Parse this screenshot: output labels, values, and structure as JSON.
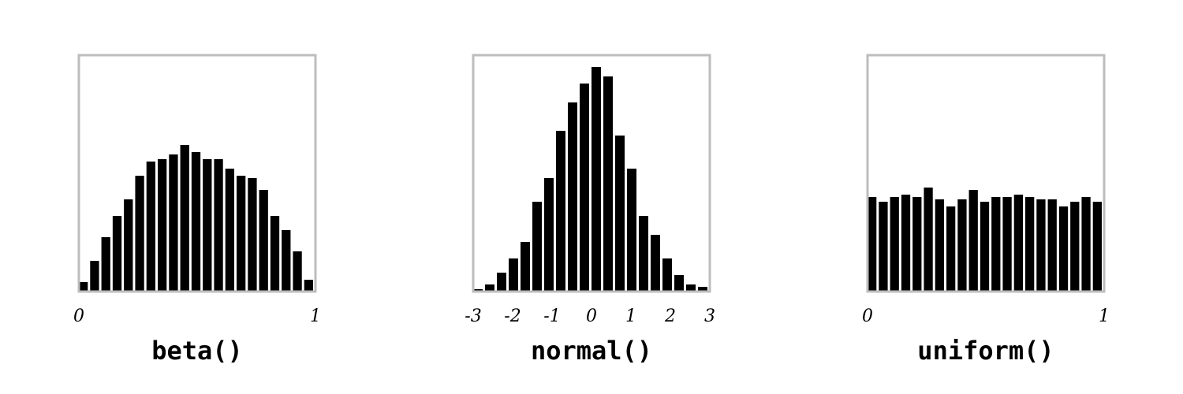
{
  "chart_data": [
    {
      "type": "bar",
      "title": "beta()",
      "xlim": [
        0,
        1
      ],
      "ylim": [
        0,
        1
      ],
      "xticks": [
        "0",
        "1"
      ],
      "grid": false,
      "values": [
        0.04,
        0.13,
        0.23,
        0.32,
        0.39,
        0.49,
        0.55,
        0.56,
        0.58,
        0.62,
        0.59,
        0.56,
        0.56,
        0.52,
        0.49,
        0.48,
        0.43,
        0.32,
        0.26,
        0.17,
        0.05
      ]
    },
    {
      "type": "bar",
      "title": "normal()",
      "xlim": [
        -3,
        3
      ],
      "ylim": [
        0,
        1
      ],
      "xticks": [
        "-3",
        "-2",
        "-1",
        "0",
        "1",
        "2",
        "3"
      ],
      "grid": false,
      "values": [
        0.01,
        0.03,
        0.08,
        0.14,
        0.21,
        0.38,
        0.48,
        0.68,
        0.8,
        0.88,
        0.95,
        0.91,
        0.66,
        0.52,
        0.32,
        0.24,
        0.14,
        0.07,
        0.03,
        0.02
      ]
    },
    {
      "type": "bar",
      "title": "uniform()",
      "xlim": [
        0,
        1
      ],
      "ylim": [
        0,
        1
      ],
      "xticks": [
        "0",
        "1"
      ],
      "grid": false,
      "values": [
        0.4,
        0.38,
        0.4,
        0.41,
        0.4,
        0.44,
        0.39,
        0.36,
        0.39,
        0.43,
        0.38,
        0.4,
        0.4,
        0.41,
        0.4,
        0.39,
        0.39,
        0.36,
        0.38,
        0.4,
        0.38
      ]
    }
  ]
}
